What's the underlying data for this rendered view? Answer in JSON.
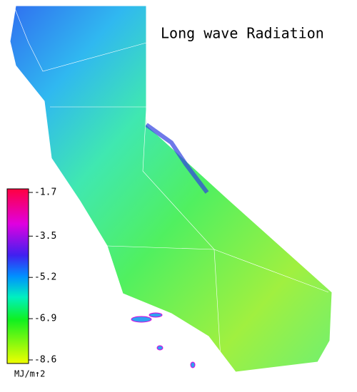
{
  "title": "Long wave Radiation",
  "colorbar": {
    "ticks": [
      -1.7,
      -3.5,
      -5.2,
      -6.9,
      -8.6
    ],
    "unit": "MJ/m↑2"
  }
}
